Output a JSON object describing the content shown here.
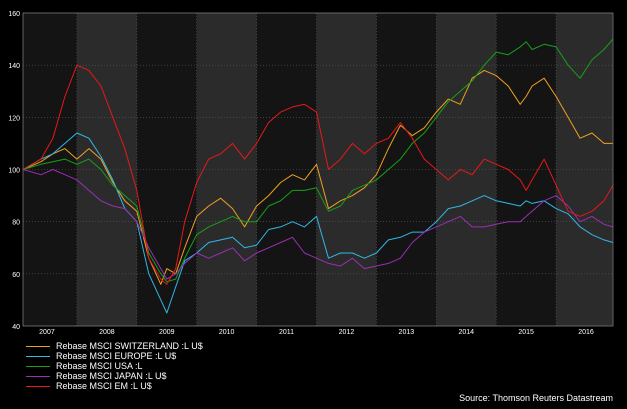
{
  "chart_data": {
    "type": "line",
    "source": "Source: Thomson Reuters Datastream",
    "ylim": [
      40,
      160
    ],
    "yticks": [
      40,
      60,
      80,
      100,
      120,
      140,
      160
    ],
    "xlim": [
      2006.6,
      2016.45
    ],
    "xtick_labels": [
      "2007",
      "2008",
      "2009",
      "2010",
      "2011",
      "2012",
      "2013",
      "2014",
      "2015",
      "2016"
    ],
    "grid": true,
    "legend_position": "bottom-left",
    "colors": {
      "background": "#000000",
      "plot_dark": "#141414",
      "plot_light": "#2b2b2b",
      "grid": "#5a5a5a",
      "text": "#ffffff"
    },
    "series": [
      {
        "name": "Rebase MSCI SWITZERLAND :L U$",
        "color": "#f0a020",
        "x": [
          2006.6,
          2006.9,
          2007.1,
          2007.3,
          2007.5,
          2007.7,
          2007.9,
          2008.1,
          2008.3,
          2008.5,
          2008.7,
          2008.9,
          2009.0,
          2009.15,
          2009.3,
          2009.5,
          2009.7,
          2009.9,
          2010.1,
          2010.3,
          2010.5,
          2010.7,
          2010.9,
          2011.1,
          2011.3,
          2011.5,
          2011.7,
          2011.9,
          2012.1,
          2012.3,
          2012.5,
          2012.7,
          2012.9,
          2013.1,
          2013.3,
          2013.5,
          2013.7,
          2013.9,
          2014.1,
          2014.3,
          2014.5,
          2014.7,
          2014.9,
          2015.0,
          2015.1,
          2015.3,
          2015.5,
          2015.7,
          2015.9,
          2016.1,
          2016.3,
          2016.45
        ],
        "values": [
          100,
          103,
          106,
          108,
          104,
          108,
          104,
          95,
          88,
          84,
          66,
          56,
          62,
          60,
          70,
          82,
          86,
          89,
          85,
          78,
          86,
          90,
          95,
          98,
          96,
          102,
          85,
          88,
          90,
          93,
          98,
          108,
          117,
          113,
          116,
          122,
          127,
          125,
          135,
          138,
          136,
          132,
          125,
          128,
          132,
          135,
          128,
          120,
          112,
          114,
          110,
          110
        ]
      },
      {
        "name": "Rebase MSCI EUROPE :L U$",
        "color": "#30b8e8",
        "x": [
          2006.6,
          2006.9,
          2007.1,
          2007.3,
          2007.5,
          2007.7,
          2007.9,
          2008.1,
          2008.3,
          2008.5,
          2008.7,
          2008.9,
          2009.0,
          2009.15,
          2009.3,
          2009.5,
          2009.7,
          2009.9,
          2010.1,
          2010.3,
          2010.5,
          2010.7,
          2010.9,
          2011.1,
          2011.3,
          2011.5,
          2011.7,
          2011.9,
          2012.1,
          2012.3,
          2012.5,
          2012.7,
          2012.9,
          2013.1,
          2013.3,
          2013.5,
          2013.7,
          2013.9,
          2014.1,
          2014.3,
          2014.5,
          2014.7,
          2014.9,
          2015.0,
          2015.1,
          2015.3,
          2015.5,
          2015.7,
          2015.9,
          2016.1,
          2016.3,
          2016.45
        ],
        "values": [
          100,
          104,
          106,
          110,
          114,
          112,
          105,
          96,
          85,
          80,
          60,
          50,
          45,
          55,
          65,
          68,
          72,
          73,
          74,
          70,
          71,
          77,
          78,
          80,
          78,
          82,
          66,
          68,
          68,
          66,
          68,
          73,
          74,
          76,
          76,
          80,
          85,
          86,
          88,
          90,
          88,
          87,
          86,
          88,
          87,
          88,
          85,
          83,
          78,
          75,
          73,
          72
        ]
      },
      {
        "name": "Rebase MSCI USA :L",
        "color": "#18a018",
        "x": [
          2006.6,
          2006.9,
          2007.1,
          2007.3,
          2007.5,
          2007.7,
          2007.9,
          2008.1,
          2008.3,
          2008.5,
          2008.7,
          2008.9,
          2009.0,
          2009.15,
          2009.3,
          2009.5,
          2009.7,
          2009.9,
          2010.1,
          2010.3,
          2010.5,
          2010.7,
          2010.9,
          2011.1,
          2011.3,
          2011.5,
          2011.7,
          2011.9,
          2012.1,
          2012.3,
          2012.5,
          2012.7,
          2012.9,
          2013.1,
          2013.3,
          2013.5,
          2013.7,
          2013.9,
          2014.1,
          2014.3,
          2014.5,
          2014.7,
          2014.9,
          2015.0,
          2015.1,
          2015.3,
          2015.5,
          2015.7,
          2015.9,
          2016.1,
          2016.3,
          2016.45
        ],
        "values": [
          100,
          102,
          103,
          104,
          102,
          104,
          100,
          94,
          90,
          86,
          68,
          60,
          57,
          58,
          66,
          75,
          78,
          80,
          82,
          80,
          80,
          86,
          88,
          92,
          92,
          93,
          84,
          86,
          92,
          94,
          96,
          100,
          104,
          110,
          114,
          120,
          126,
          130,
          134,
          140,
          145,
          144,
          147,
          149,
          146,
          148,
          147,
          140,
          135,
          142,
          146,
          150
        ]
      },
      {
        "name": "Rebase MSCI JAPAN :L U$",
        "color": "#9b2fb5",
        "x": [
          2006.6,
          2006.9,
          2007.1,
          2007.3,
          2007.5,
          2007.7,
          2007.9,
          2008.1,
          2008.3,
          2008.5,
          2008.7,
          2008.9,
          2009.0,
          2009.15,
          2009.3,
          2009.5,
          2009.7,
          2009.9,
          2010.1,
          2010.3,
          2010.5,
          2010.7,
          2010.9,
          2011.1,
          2011.3,
          2011.5,
          2011.7,
          2011.9,
          2012.1,
          2012.3,
          2012.5,
          2012.7,
          2012.9,
          2013.1,
          2013.3,
          2013.5,
          2013.7,
          2013.9,
          2014.1,
          2014.3,
          2014.5,
          2014.7,
          2014.9,
          2015.0,
          2015.1,
          2015.3,
          2015.5,
          2015.7,
          2015.9,
          2016.1,
          2016.3,
          2016.45
        ],
        "values": [
          100,
          98,
          100,
          98,
          96,
          92,
          88,
          86,
          85,
          80,
          70,
          62,
          58,
          60,
          64,
          68,
          66,
          68,
          70,
          65,
          68,
          70,
          72,
          74,
          68,
          66,
          64,
          63,
          66,
          62,
          63,
          64,
          66,
          72,
          76,
          78,
          80,
          82,
          78,
          78,
          79,
          80,
          80,
          82,
          84,
          88,
          90,
          86,
          80,
          82,
          79,
          78
        ]
      },
      {
        "name": "Rebase MSCI EM :L U$",
        "color": "#e81818",
        "x": [
          2006.6,
          2006.9,
          2007.1,
          2007.3,
          2007.5,
          2007.7,
          2007.9,
          2008.1,
          2008.3,
          2008.5,
          2008.7,
          2008.9,
          2009.0,
          2009.15,
          2009.3,
          2009.5,
          2009.7,
          2009.9,
          2010.1,
          2010.3,
          2010.5,
          2010.7,
          2010.9,
          2011.1,
          2011.3,
          2011.5,
          2011.7,
          2011.9,
          2012.1,
          2012.3,
          2012.5,
          2012.7,
          2012.9,
          2013.1,
          2013.3,
          2013.5,
          2013.7,
          2013.9,
          2014.1,
          2014.3,
          2014.5,
          2014.7,
          2014.9,
          2015.0,
          2015.1,
          2015.3,
          2015.5,
          2015.7,
          2015.9,
          2016.1,
          2016.3,
          2016.45
        ],
        "values": [
          100,
          104,
          112,
          128,
          140,
          138,
          132,
          120,
          108,
          92,
          66,
          58,
          56,
          62,
          80,
          95,
          104,
          106,
          110,
          104,
          110,
          118,
          122,
          124,
          125,
          122,
          100,
          104,
          110,
          106,
          110,
          112,
          118,
          112,
          104,
          100,
          96,
          100,
          98,
          104,
          102,
          100,
          96,
          92,
          96,
          104,
          94,
          84,
          82,
          84,
          88,
          94
        ]
      }
    ]
  }
}
